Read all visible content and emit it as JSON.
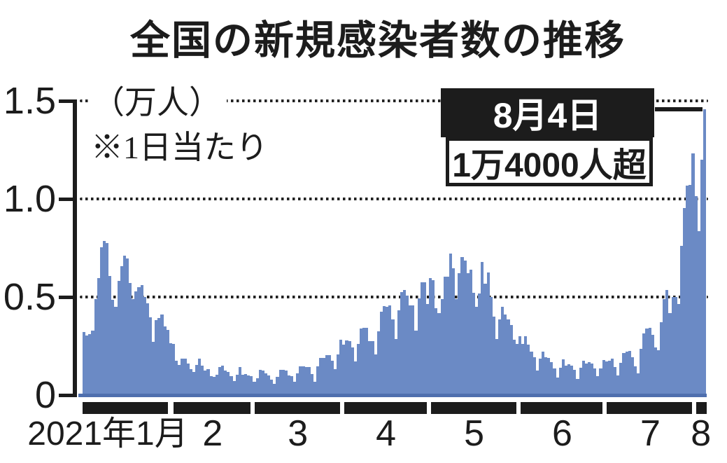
{
  "title": "全国の新規感染者数の推移",
  "y_axis": {
    "unit_label": "（万人）",
    "note": "※1日当たり",
    "ticks": [
      "1.5",
      "1.0",
      "0.5",
      "0"
    ]
  },
  "x_axis": {
    "labels": [
      "2021年1月",
      "2",
      "3",
      "4",
      "5",
      "6",
      "7",
      "8"
    ]
  },
  "annotation": {
    "date_label": "8月4日",
    "value_label": "1万4000人超"
  },
  "colors": {
    "bar": "#6b8ac5",
    "baseline": "#4f6fae",
    "ink": "#1c1c1c"
  },
  "chart_data": {
    "type": "bar",
    "title": "全国の新規感染者数の推移",
    "ylabel": "万人",
    "note": "※1日当たり",
    "frequency": "daily",
    "ylim": [
      0,
      1.5
    ],
    "yticks": [
      0,
      0.5,
      1.0,
      1.5
    ],
    "grid": "dotted horizontal",
    "legend": "none",
    "peak_annotation": {
      "date": "8月4日",
      "text": "1万4000人超",
      "value": 1.46
    },
    "months": [
      {
        "label": "2021年1月",
        "days": 31
      },
      {
        "label": "2",
        "days": 28
      },
      {
        "label": "3",
        "days": 31
      },
      {
        "label": "4",
        "days": 30
      },
      {
        "label": "5",
        "days": 31
      },
      {
        "label": "6",
        "days": 30
      },
      {
        "label": "7",
        "days": 31
      },
      {
        "label": "8",
        "days": 4
      }
    ],
    "values": [
      0.325,
      0.306,
      0.313,
      0.333,
      0.492,
      0.6,
      0.757,
      0.788,
      0.779,
      0.61,
      0.488,
      0.453,
      0.587,
      0.661,
      0.713,
      0.701,
      0.576,
      0.493,
      0.532,
      0.555,
      0.565,
      0.505,
      0.472,
      0.399,
      0.276,
      0.385,
      0.397,
      0.413,
      0.354,
      0.334,
      0.267,
      0.263,
      0.179,
      0.158,
      0.189,
      0.189,
      0.163,
      0.136,
      0.122,
      0.157,
      0.189,
      0.155,
      0.13,
      0.136,
      0.1,
      0.097,
      0.108,
      0.145,
      0.154,
      0.13,
      0.123,
      0.101,
      0.074,
      0.108,
      0.145,
      0.108,
      0.109,
      0.104,
      0.1,
      0.07,
      0.089,
      0.132,
      0.13,
      0.115,
      0.105,
      0.082,
      0.06,
      0.097,
      0.132,
      0.132,
      0.127,
      0.105,
      0.099,
      0.07,
      0.113,
      0.15,
      0.15,
      0.146,
      0.147,
      0.112,
      0.07,
      0.15,
      0.192,
      0.193,
      0.207,
      0.206,
      0.179,
      0.135,
      0.209,
      0.284,
      0.262,
      0.281,
      0.278,
      0.247,
      0.176,
      0.265,
      0.344,
      0.345,
      0.345,
      0.277,
      0.277,
      0.21,
      0.328,
      0.43,
      0.457,
      0.453,
      0.46,
      0.389,
      0.291,
      0.434,
      0.529,
      0.54,
      0.511,
      0.461,
      0.459,
      0.332,
      0.497,
      0.579,
      0.58,
      0.469,
      0.599,
      0.588,
      0.447,
      0.42,
      0.493,
      0.606,
      0.606,
      0.724,
      0.649,
      0.494,
      0.624,
      0.706,
      0.688,
      0.626,
      0.642,
      0.525,
      0.454,
      0.523,
      0.683,
      0.572,
      0.627,
      0.504,
      0.405,
      0.291,
      0.39,
      0.454,
      0.414,
      0.39,
      0.361,
      0.285,
      0.266,
      0.304,
      0.264,
      0.304,
      0.259,
      0.225,
      0.197,
      0.128,
      0.188,
      0.224,
      0.197,
      0.194,
      0.17,
      0.139,
      0.094,
      0.142,
      0.186,
      0.155,
      0.161,
      0.152,
      0.131,
      0.087,
      0.144,
      0.178,
      0.166,
      0.17,
      0.163,
      0.139,
      0.1,
      0.138,
      0.182,
      0.175,
      0.177,
      0.188,
      0.148,
      0.103,
      0.167,
      0.218,
      0.225,
      0.228,
      0.195,
      0.151,
      0.116,
      0.239,
      0.319,
      0.342,
      0.345,
      0.31,
      0.246,
      0.233,
      0.376,
      0.494,
      0.54,
      0.423,
      0.502,
      0.502,
      0.469,
      0.763,
      0.958,
      1.07,
      1.074,
      1.234,
      1.018,
      0.839,
      1.202,
      1.46
    ]
  }
}
